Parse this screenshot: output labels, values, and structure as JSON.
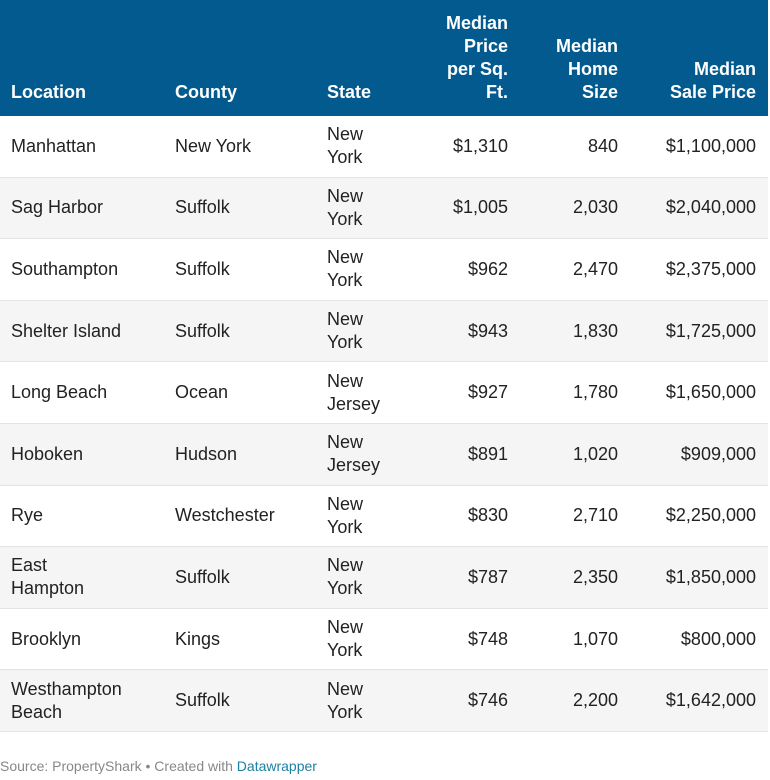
{
  "chart_data": {
    "type": "table",
    "columns": [
      "Location",
      "County",
      "State",
      "Median Price per Sq. Ft.",
      "Median Home Size",
      "Median Sale Price"
    ],
    "header_lines": {
      "location": [
        "Location"
      ],
      "county": [
        "County"
      ],
      "state": [
        "State"
      ],
      "price_per_sqft": [
        "Median",
        "Price",
        "per Sq.",
        "Ft."
      ],
      "home_size": [
        "Median",
        "Home",
        "Size"
      ],
      "sale_price": [
        "Median",
        "Sale Price"
      ]
    },
    "rows": [
      {
        "location": [
          "Manhattan"
        ],
        "county": "New York",
        "state": [
          "New",
          "York"
        ],
        "price_per_sqft": "$1,310",
        "home_size": "840",
        "sale_price": "$1,100,000"
      },
      {
        "location": [
          "Sag Harbor"
        ],
        "county": "Suffolk",
        "state": [
          "New",
          "York"
        ],
        "price_per_sqft": "$1,005",
        "home_size": "2,030",
        "sale_price": "$2,040,000"
      },
      {
        "location": [
          "Southampton"
        ],
        "county": "Suffolk",
        "state": [
          "New",
          "York"
        ],
        "price_per_sqft": "$962",
        "home_size": "2,470",
        "sale_price": "$2,375,000"
      },
      {
        "location": [
          "Shelter Island"
        ],
        "county": "Suffolk",
        "state": [
          "New",
          "York"
        ],
        "price_per_sqft": "$943",
        "home_size": "1,830",
        "sale_price": "$1,725,000"
      },
      {
        "location": [
          "Long Beach"
        ],
        "county": "Ocean",
        "state": [
          "New",
          "Jersey"
        ],
        "price_per_sqft": "$927",
        "home_size": "1,780",
        "sale_price": "$1,650,000"
      },
      {
        "location": [
          "Hoboken"
        ],
        "county": "Hudson",
        "state": [
          "New",
          "Jersey"
        ],
        "price_per_sqft": "$891",
        "home_size": "1,020",
        "sale_price": "$909,000"
      },
      {
        "location": [
          "Rye"
        ],
        "county": "Westchester",
        "state": [
          "New",
          "York"
        ],
        "price_per_sqft": "$830",
        "home_size": "2,710",
        "sale_price": "$2,250,000"
      },
      {
        "location": [
          "East",
          "Hampton"
        ],
        "county": "Suffolk",
        "state": [
          "New",
          "York"
        ],
        "price_per_sqft": "$787",
        "home_size": "2,350",
        "sale_price": "$1,850,000"
      },
      {
        "location": [
          "Brooklyn"
        ],
        "county": "Kings",
        "state": [
          "New",
          "York"
        ],
        "price_per_sqft": "$748",
        "home_size": "1,070",
        "sale_price": "$800,000"
      },
      {
        "location": [
          "Westhampton",
          "Beach"
        ],
        "county": "Suffolk",
        "state": [
          "New",
          "York"
        ],
        "price_per_sqft": "$746",
        "home_size": "2,200",
        "sale_price": "$1,642,000"
      }
    ]
  },
  "footer": {
    "source_text": "Source: PropertyShark • Created with ",
    "link_text": "Datawrapper"
  },
  "colors": {
    "header_bg": "#035a8f",
    "header_text": "#ffffff",
    "alt_row_bg": "#f5f5f5",
    "link": "#1d81a2"
  }
}
